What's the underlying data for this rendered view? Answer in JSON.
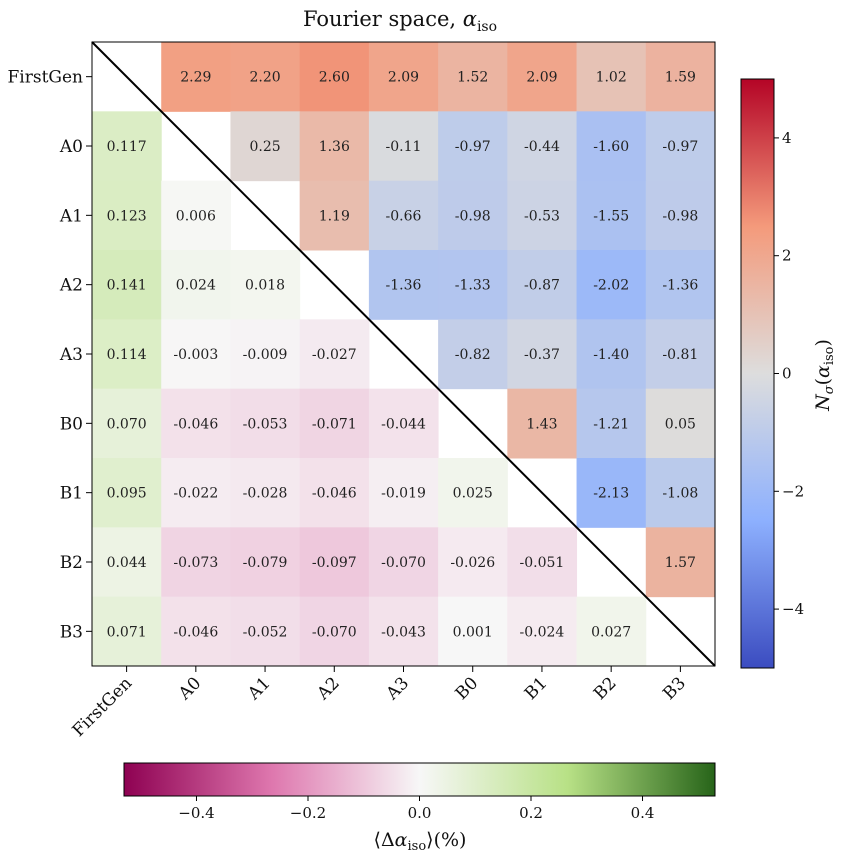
{
  "chart_data": {
    "type": "heatmap",
    "title_main": "Fourier space, ",
    "title_symbol": "α",
    "title_sub": "iso",
    "row_labels": [
      "FirstGen",
      "A0",
      "A1",
      "A2",
      "A3",
      "B0",
      "B1",
      "B2",
      "B3"
    ],
    "col_labels": [
      "FirstGen",
      "A0",
      "A1",
      "A2",
      "A3",
      "B0",
      "B1",
      "B2",
      "B3"
    ],
    "upper_triangle": {
      "description": "N_sigma(alpha_iso)",
      "values": [
        [
          null,
          2.29,
          2.2,
          2.6,
          2.09,
          1.52,
          2.09,
          1.02,
          1.59
        ],
        [
          null,
          null,
          0.25,
          1.36,
          -0.11,
          -0.97,
          -0.44,
          -1.6,
          -0.97
        ],
        [
          null,
          null,
          null,
          1.19,
          -0.66,
          -0.98,
          -0.53,
          -1.55,
          -0.98
        ],
        [
          null,
          null,
          null,
          null,
          -1.36,
          -1.33,
          -0.87,
          -2.02,
          -1.36
        ],
        [
          null,
          null,
          null,
          null,
          null,
          -0.82,
          -0.37,
          -1.4,
          -0.81
        ],
        [
          null,
          null,
          null,
          null,
          null,
          null,
          1.43,
          -1.21,
          0.05
        ],
        [
          null,
          null,
          null,
          null,
          null,
          null,
          null,
          -2.13,
          -1.08
        ],
        [
          null,
          null,
          null,
          null,
          null,
          null,
          null,
          null,
          1.57
        ],
        [
          null,
          null,
          null,
          null,
          null,
          null,
          null,
          null,
          null
        ]
      ],
      "labels": [
        [
          null,
          "2.29",
          "2.20",
          "2.60",
          "2.09",
          "1.52",
          "2.09",
          "1.02",
          "1.59"
        ],
        [
          null,
          null,
          "0.25",
          "1.36",
          "-0.11",
          "-0.97",
          "-0.44",
          "-1.60",
          "-0.97"
        ],
        [
          null,
          null,
          null,
          "1.19",
          "-0.66",
          "-0.98",
          "-0.53",
          "-1.55",
          "-0.98"
        ],
        [
          null,
          null,
          null,
          null,
          "-1.36",
          "-1.33",
          "-0.87",
          "-2.02",
          "-1.36"
        ],
        [
          null,
          null,
          null,
          null,
          null,
          "-0.82",
          "-0.37",
          "-1.40",
          "-0.81"
        ],
        [
          null,
          null,
          null,
          null,
          null,
          null,
          "1.43",
          "-1.21",
          "0.05"
        ],
        [
          null,
          null,
          null,
          null,
          null,
          null,
          null,
          "-2.13",
          "-1.08"
        ],
        [
          null,
          null,
          null,
          null,
          null,
          null,
          null,
          null,
          "1.57"
        ],
        [
          null,
          null,
          null,
          null,
          null,
          null,
          null,
          null,
          null
        ]
      ]
    },
    "lower_triangle": {
      "description": "mean delta alpha_iso (%)",
      "values": [
        [
          null,
          null,
          null,
          null,
          null,
          null,
          null,
          null,
          null
        ],
        [
          0.117,
          null,
          null,
          null,
          null,
          null,
          null,
          null,
          null
        ],
        [
          0.123,
          0.006,
          null,
          null,
          null,
          null,
          null,
          null,
          null
        ],
        [
          0.141,
          0.024,
          0.018,
          null,
          null,
          null,
          null,
          null,
          null
        ],
        [
          0.114,
          -0.003,
          -0.009,
          -0.027,
          null,
          null,
          null,
          null,
          null
        ],
        [
          0.07,
          -0.046,
          -0.053,
          -0.071,
          -0.044,
          null,
          null,
          null,
          null
        ],
        [
          0.095,
          -0.022,
          -0.028,
          -0.046,
          -0.019,
          0.025,
          null,
          null,
          null
        ],
        [
          0.044,
          -0.073,
          -0.079,
          -0.097,
          -0.07,
          -0.026,
          -0.051,
          null,
          null
        ],
        [
          0.071,
          -0.046,
          -0.052,
          -0.07,
          -0.043,
          0.001,
          -0.024,
          0.027,
          null
        ]
      ],
      "labels": [
        [
          null,
          null,
          null,
          null,
          null,
          null,
          null,
          null,
          null
        ],
        [
          "0.117",
          null,
          null,
          null,
          null,
          null,
          null,
          null,
          null
        ],
        [
          "0.123",
          "0.006",
          null,
          null,
          null,
          null,
          null,
          null,
          null
        ],
        [
          "0.141",
          "0.024",
          "0.018",
          null,
          null,
          null,
          null,
          null,
          null
        ],
        [
          "0.114",
          "-0.003",
          "-0.009",
          "-0.027",
          null,
          null,
          null,
          null,
          null
        ],
        [
          "0.070",
          "-0.046",
          "-0.053",
          "-0.071",
          "-0.044",
          null,
          null,
          null,
          null
        ],
        [
          "0.095",
          "-0.022",
          "-0.028",
          "-0.046",
          "-0.019",
          "0.025",
          null,
          null,
          null
        ],
        [
          "0.044",
          "-0.073",
          "-0.079",
          "-0.097",
          "-0.070",
          "-0.026",
          "-0.051",
          null,
          null
        ],
        [
          "0.071",
          "-0.046",
          "-0.052",
          "-0.070",
          "-0.043",
          "0.001",
          "-0.024",
          "0.027",
          null
        ]
      ]
    },
    "right_colorbar": {
      "label_main": "N",
      "label_sub": "σ",
      "label_paren_symbol": "α",
      "label_paren_sub": "iso",
      "range": [
        -5,
        5
      ],
      "ticks": [
        -4,
        -2,
        0,
        2,
        4
      ],
      "tick_labels": [
        "−4",
        "−2",
        "0",
        "2",
        "4"
      ],
      "colormap": "coolwarm",
      "colors": [
        "#3b4cc0",
        "#8db0fe",
        "#dddddd",
        "#f49a7b",
        "#b40426"
      ]
    },
    "bottom_colorbar": {
      "label_left": "⟨Δ",
      "label_symbol": "α",
      "label_sub": "iso",
      "label_right": "⟩(%)",
      "range": [
        -0.53,
        0.53
      ],
      "ticks": [
        -0.4,
        -0.2,
        0.0,
        0.2,
        0.4
      ],
      "tick_labels": [
        "−0.4",
        "−0.2",
        "0.0",
        "0.2",
        "0.4"
      ],
      "colormap": "PiYG",
      "colors": [
        "#8e0152",
        "#de77ae",
        "#f7f7f7",
        "#b8e186",
        "#276419"
      ]
    }
  }
}
